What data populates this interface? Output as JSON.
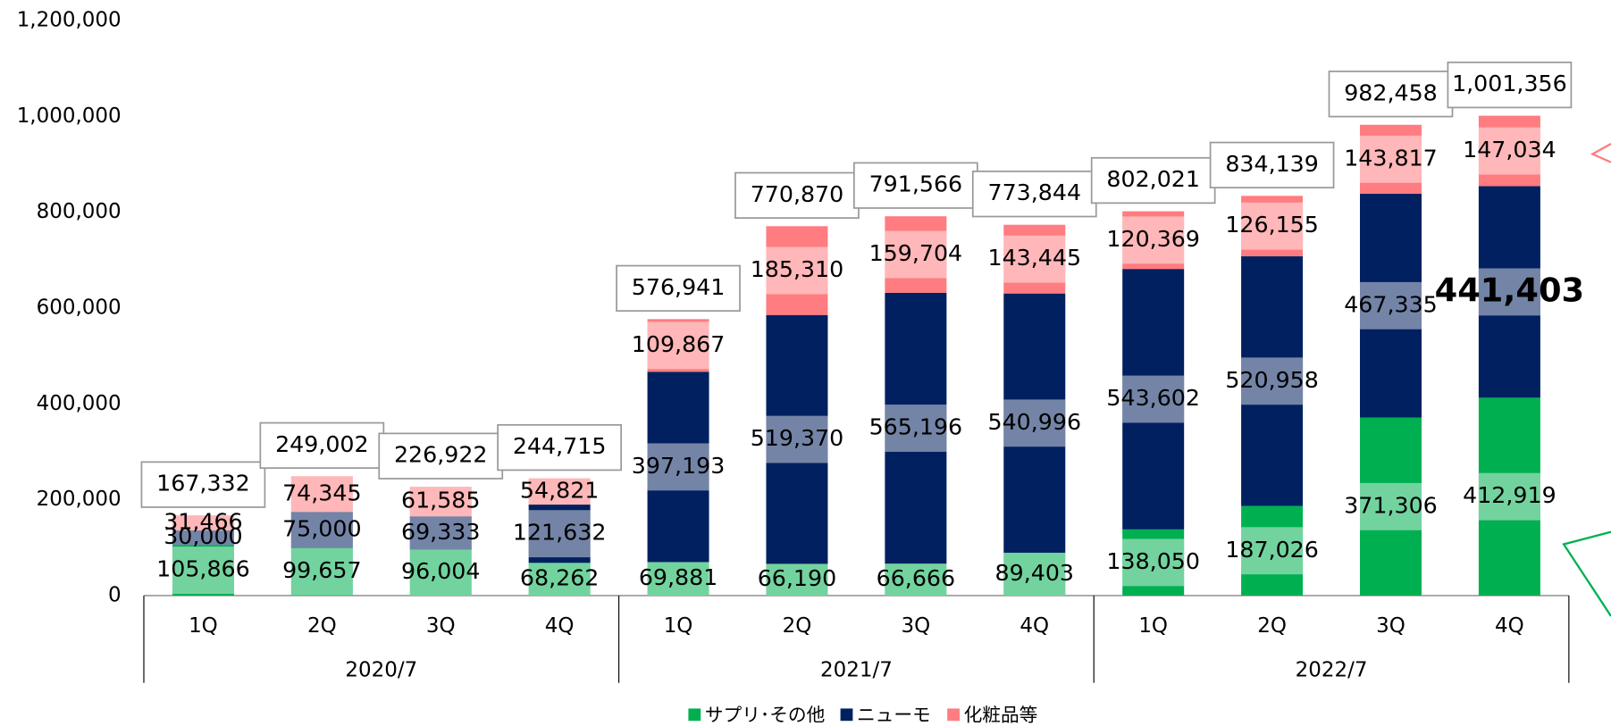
{
  "chart_data": {
    "type": "stacked_bar",
    "categories": [
      "1Q",
      "2Q",
      "3Q",
      "4Q",
      "1Q",
      "2Q",
      "3Q",
      "4Q",
      "1Q",
      "2Q",
      "3Q",
      "4Q"
    ],
    "groups": [
      "2020/7",
      "2021/7",
      "2022/7"
    ],
    "series": [
      {
        "name": "サプリ･その他",
        "color": "#00b050",
        "values": [
          105866,
          99657,
          96004,
          68262,
          69881,
          66190,
          66666,
          89403,
          138050,
          187026,
          371306,
          412919
        ]
      },
      {
        "name": "ニューモ",
        "color": "#002060",
        "values": [
          30000,
          75000,
          69333,
          121632,
          397193,
          519370,
          565196,
          540996,
          543602,
          520958,
          467335,
          441403
        ]
      },
      {
        "name": "化粧品等",
        "color": "#ff7c80",
        "values": [
          31466,
          74345,
          61585,
          54821,
          109867,
          185310,
          159704,
          143445,
          120369,
          126155,
          143817,
          147034
        ]
      }
    ],
    "totals": [
      167332,
      249002,
      226922,
      244715,
      576941,
      770870,
      791566,
      773844,
      802021,
      834139,
      982458,
      1001356
    ],
    "ylim": [
      0,
      1200000
    ],
    "yticks": [
      0,
      {
        "value": 200000,
        "label": "200,000"
      },
      {
        "value": 400000,
        "label": "400,000"
      },
      {
        "value": 600000,
        "label": "600,000"
      },
      {
        "value": 800000,
        "label": "800,000"
      },
      {
        "value": 1000000,
        "label": "1,000,000"
      },
      {
        "value": 1200000,
        "label": "1,200,000"
      }
    ],
    "legend": "bottom"
  }
}
